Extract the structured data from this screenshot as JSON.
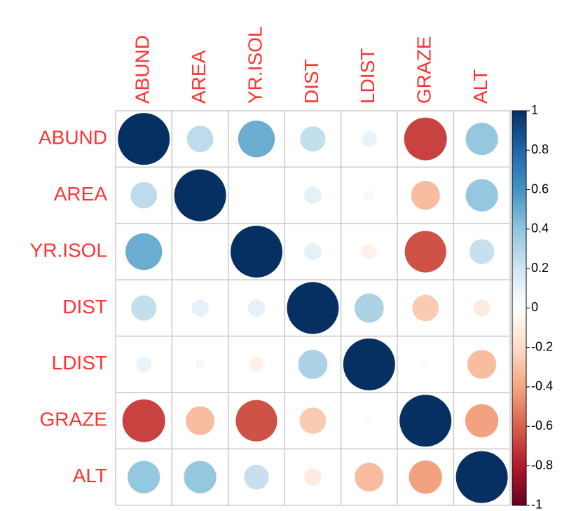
{
  "chart_data": {
    "type": "corrplot",
    "variables": [
      "ABUND",
      "AREA",
      "YR.ISOL",
      "DIST",
      "LDIST",
      "GRAZE",
      "ALT"
    ],
    "matrix": [
      [
        1,
        0.26,
        0.5,
        0.24,
        0.09,
        -0.68,
        0.39
      ],
      [
        0.26,
        1,
        0.002,
        0.11,
        0.04,
        -0.31,
        0.39
      ],
      [
        0.5,
        0.002,
        1,
        0.11,
        -0.08,
        -0.64,
        0.23
      ],
      [
        0.24,
        0.11,
        0.11,
        1,
        0.32,
        -0.26,
        -0.11
      ],
      [
        0.09,
        0.04,
        -0.08,
        0.32,
        1,
        -0.03,
        -0.31
      ],
      [
        -0.68,
        -0.31,
        -0.64,
        -0.26,
        -0.03,
        1,
        -0.41
      ],
      [
        0.39,
        0.39,
        0.23,
        -0.11,
        -0.31,
        -0.41,
        1
      ]
    ],
    "clim": [
      -1,
      1
    ],
    "cticks": [
      1,
      0.8,
      0.6,
      0.4,
      0.2,
      0,
      -0.2,
      -0.4,
      -0.6,
      -0.8,
      -1
    ],
    "colors": [
      "#67001F",
      "#B2182B",
      "#D6604D",
      "#F4A582",
      "#FDDBC7",
      "#FFFFFF",
      "#D1E5F0",
      "#92C5DE",
      "#4393C3",
      "#2166AC",
      "#053061"
    ]
  }
}
